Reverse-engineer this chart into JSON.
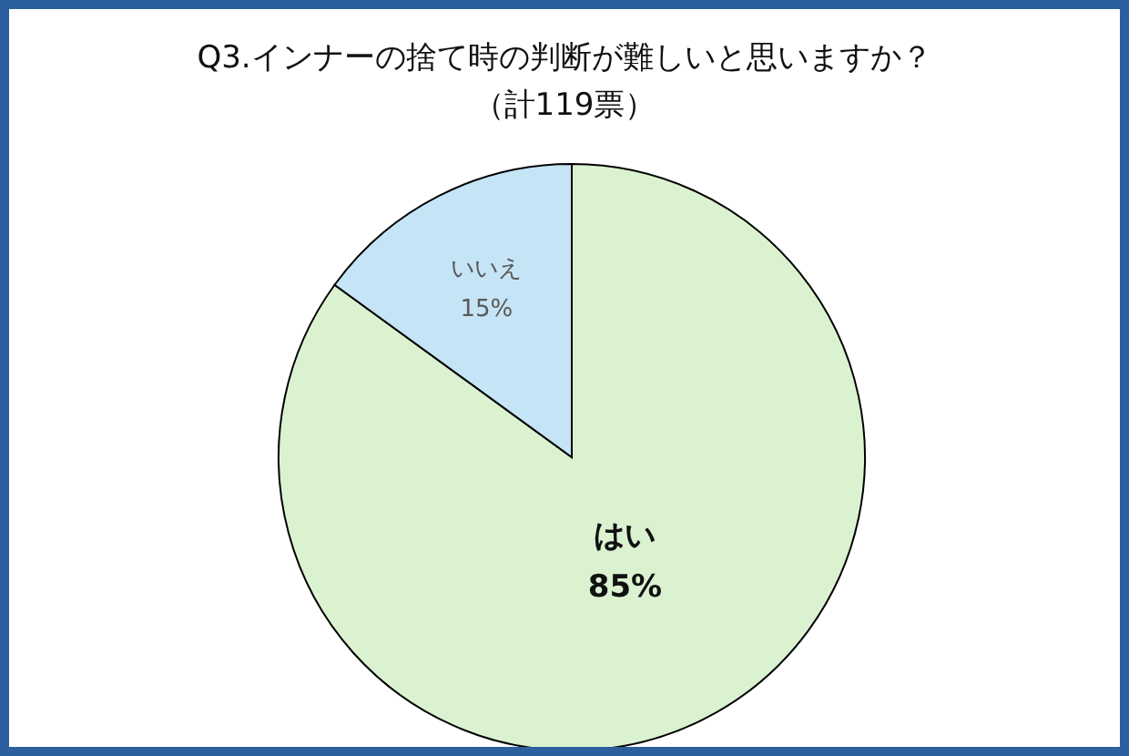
{
  "chart_data": {
    "type": "pie",
    "title": "Q3.インナーの捨て時の判断が難しいと思いますか？",
    "subtitle": "（計119票）",
    "categories": [
      "はい",
      "いいえ"
    ],
    "values": [
      85,
      15
    ],
    "colors": [
      "#dbf2d1",
      "#c5e4f6"
    ],
    "value_labels": [
      "85%",
      "15%"
    ]
  }
}
